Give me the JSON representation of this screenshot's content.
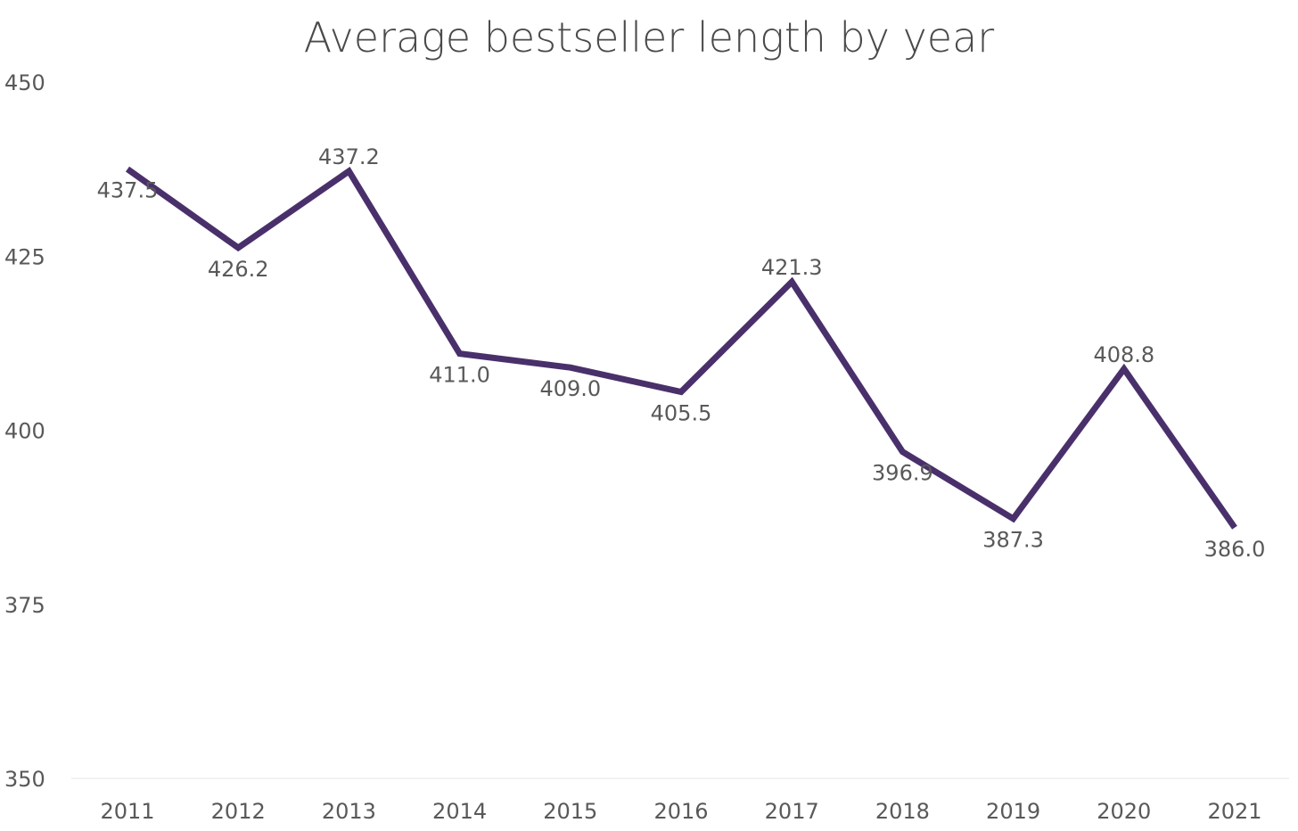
{
  "chart_data": {
    "type": "line",
    "title": "Average bestseller length by year",
    "xlabel": "",
    "ylabel": "",
    "categories": [
      "2011",
      "2012",
      "2013",
      "2014",
      "2015",
      "2016",
      "2017",
      "2018",
      "2019",
      "2020",
      "2021"
    ],
    "series": [
      {
        "values": [
          437.5,
          426.2,
          437.2,
          411.0,
          409.0,
          405.5,
          421.3,
          396.9,
          387.3,
          408.8,
          386.0
        ],
        "labels": [
          "437.5",
          "426.2",
          "437.2",
          "411.0",
          "409.0",
          "405.5",
          "421.3",
          "396.9",
          "387.3",
          "408.8",
          "386.0"
        ],
        "color": "#49306b"
      }
    ],
    "ylim": [
      350,
      450
    ],
    "yticks": [
      "350",
      "375",
      "400",
      "425",
      "450"
    ],
    "label_positions": [
      "below",
      "below",
      "above",
      "below",
      "below",
      "below",
      "above",
      "below",
      "below",
      "above",
      "below"
    ],
    "grid": false,
    "legend": "none"
  }
}
